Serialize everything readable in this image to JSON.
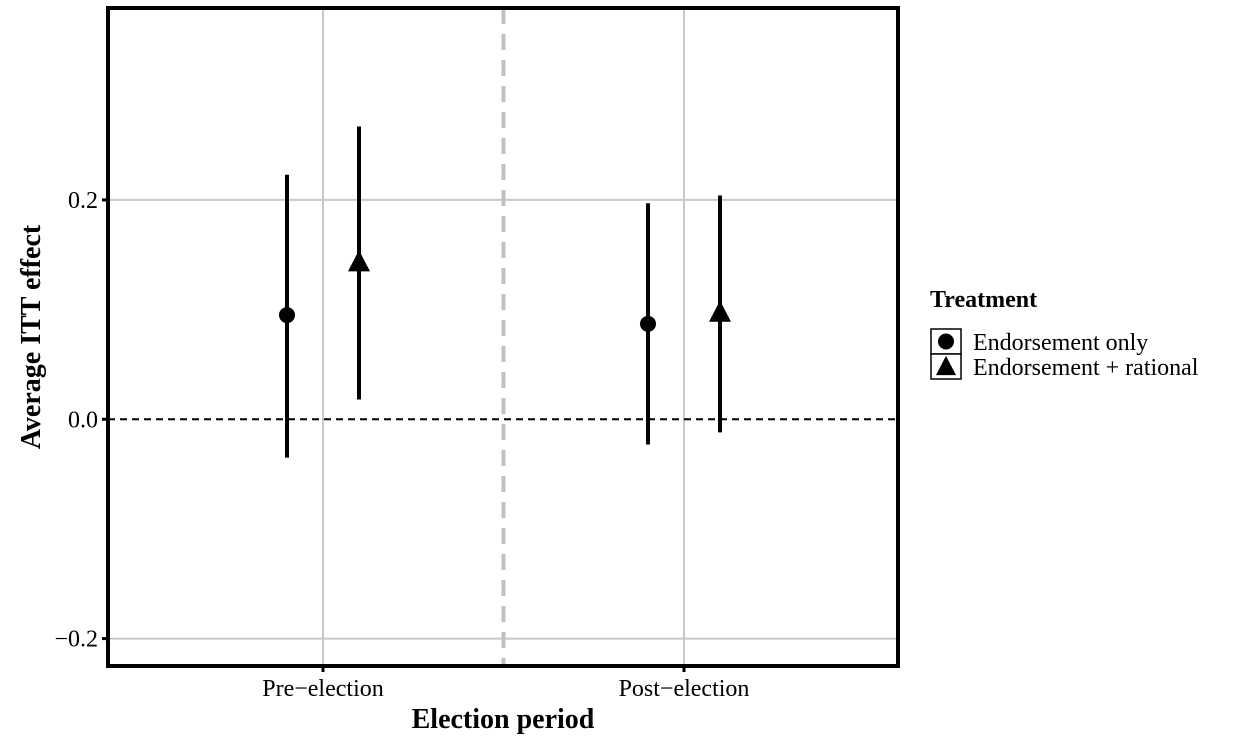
{
  "chart_data": {
    "type": "scatter",
    "subtype": "point-range",
    "xlabel": "Election period",
    "ylabel": "Average ITT effect",
    "categories": [
      "Pre−election",
      "Post−election"
    ],
    "ylim": [
      -0.225,
      0.375
    ],
    "y_ticks": [
      -0.2,
      0.0,
      0.2
    ],
    "y_tick_labels": [
      "−0.2",
      "0.0",
      "0.2"
    ],
    "grid": true,
    "reference_line_y": 0,
    "category_separator": true,
    "legend": {
      "title": "Treatment",
      "position": "right"
    },
    "series": [
      {
        "name": "Endorsement only",
        "marker": "circle",
        "values": [
          0.095,
          0.087
        ],
        "lower": [
          -0.035,
          -0.023
        ],
        "upper": [
          0.223,
          0.197
        ]
      },
      {
        "name": "Endorsement + rational",
        "marker": "triangle",
        "values": [
          0.143,
          0.097
        ],
        "lower": [
          0.018,
          -0.012
        ],
        "upper": [
          0.267,
          0.204
        ]
      }
    ],
    "colors": {
      "marks": "#000000",
      "grid": "#c8c8c8",
      "separator": "#c0c0c0",
      "frame": "#000000"
    }
  }
}
